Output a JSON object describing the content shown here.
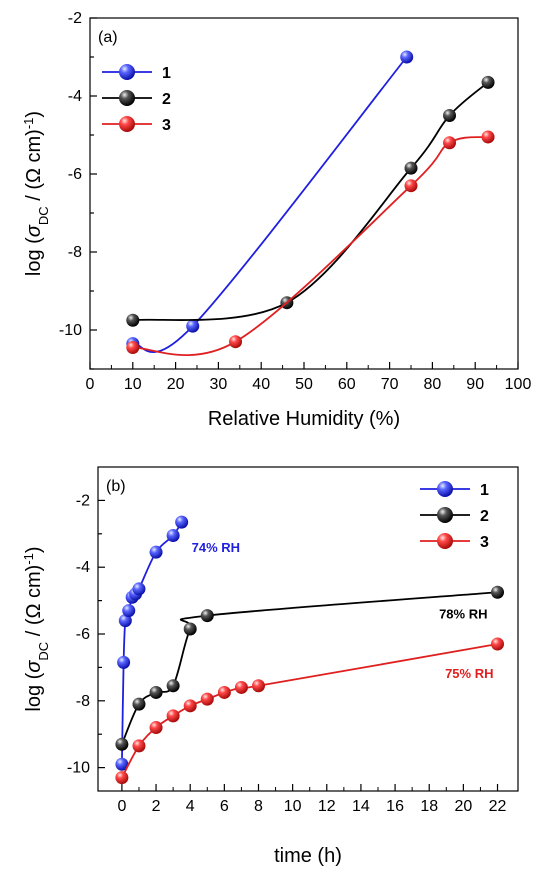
{
  "chart_data": [
    {
      "type": "line",
      "panel_label": "(a)",
      "title": "",
      "xlabel": "Relative Humidity (%)",
      "ylabel_parts": [
        "log (",
        "σ",
        "DC",
        " / (",
        "Ω",
        " cm)",
        "-1",
        ")"
      ],
      "xlim": [
        0,
        100
      ],
      "ylim": [
        -11,
        -2
      ],
      "xticks": [
        0,
        10,
        20,
        30,
        40,
        50,
        60,
        70,
        80,
        90,
        100
      ],
      "yticks": [
        -10,
        -8,
        -6,
        -4,
        -2
      ],
      "legend": "top-left",
      "grid": false,
      "series": [
        {
          "name": "1",
          "color": "#1f1fe0",
          "x": [
            10,
            24,
            74
          ],
          "y": [
            -10.35,
            -9.9,
            -3.0
          ]
        },
        {
          "name": "2",
          "color": "#000000",
          "x": [
            10,
            46,
            75,
            84,
            93
          ],
          "y": [
            -9.75,
            -9.3,
            -5.85,
            -4.5,
            -3.65
          ]
        },
        {
          "name": "3",
          "color": "#e02020",
          "x": [
            10,
            34,
            75,
            84,
            93
          ],
          "y": [
            -10.45,
            -10.3,
            -6.3,
            -5.2,
            -5.05
          ]
        }
      ]
    },
    {
      "type": "line",
      "panel_label": "(b)",
      "title": "",
      "xlabel": "time (h)",
      "ylabel_parts": [
        "log (",
        "σ",
        "DC",
        " / (",
        "Ω",
        " cm)",
        "-1",
        ")"
      ],
      "xlim": [
        -1.4,
        23.2
      ],
      "ylim": [
        -10.7,
        -1
      ],
      "xticks": [
        0,
        2,
        4,
        6,
        8,
        10,
        12,
        14,
        16,
        18,
        20,
        22
      ],
      "yticks": [
        -10,
        -8,
        -6,
        -4,
        -2
      ],
      "legend": "top-right",
      "grid": false,
      "series": [
        {
          "name": "1",
          "color": "#1f1fe0",
          "annotation": "74% RH",
          "x": [
            0,
            0.1,
            0.2,
            0.4,
            0.6,
            0.8,
            1.0,
            2.0,
            3.0,
            3.5
          ],
          "y": [
            -9.9,
            -6.85,
            -5.6,
            -5.3,
            -4.9,
            -4.8,
            -4.65,
            -3.55,
            -3.05,
            -2.65
          ]
        },
        {
          "name": "2",
          "color": "#000000",
          "annotation": "78% RH",
          "x": [
            0,
            1,
            2,
            3,
            4,
            5,
            22
          ],
          "y": [
            -9.3,
            -8.1,
            -7.75,
            -7.55,
            -5.85,
            -5.45,
            -4.75
          ]
        },
        {
          "name": "3",
          "color": "#e02020",
          "annotation": "75% RH",
          "x": [
            0,
            1,
            2,
            3,
            4,
            5,
            6,
            7,
            8,
            22
          ],
          "y": [
            -10.3,
            -9.35,
            -8.8,
            -8.45,
            -8.15,
            -7.95,
            -7.75,
            -7.6,
            -7.55,
            -6.3
          ]
        }
      ]
    }
  ]
}
